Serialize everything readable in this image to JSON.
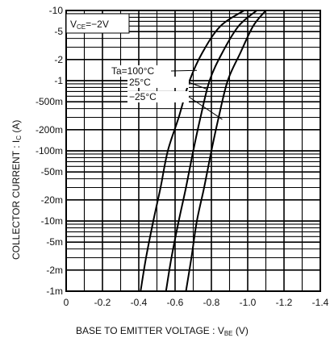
{
  "chart_data": {
    "type": "line",
    "condition": "VСЕ=−2V",
    "condition_parts": {
      "prefix": "V",
      "sub": "CE",
      "suffix": "=−2V"
    },
    "xlabel": {
      "main": "BASE  TO  EMITTER  VOLTAGE : V",
      "sub": "BE",
      "unit": " (V)"
    },
    "ylabel": {
      "main": "COLLECTOR  CURRENT : I",
      "sub": "C",
      "unit": " (A)"
    },
    "xlim": [
      0,
      -1.4
    ],
    "ylim": [
      -0.001,
      -10
    ],
    "y_scale": "log",
    "grid": true,
    "x_ticks": [
      {
        "value": 0,
        "label": "0"
      },
      {
        "value": -0.2,
        "label": "-0.2"
      },
      {
        "value": -0.4,
        "label": "-0.4"
      },
      {
        "value": -0.6,
        "label": "-0.6"
      },
      {
        "value": -0.8,
        "label": "-0.8"
      },
      {
        "value": -1.0,
        "label": "-1.0"
      },
      {
        "value": -1.2,
        "label": "-1.2"
      },
      {
        "value": -1.4,
        "label": "-1.4"
      }
    ],
    "y_ticks": [
      {
        "value": -10,
        "label": "-10"
      },
      {
        "value": -5,
        "label": "-5"
      },
      {
        "value": -2,
        "label": "-2"
      },
      {
        "value": -1,
        "label": "-1"
      },
      {
        "value": -0.5,
        "label": "-500m"
      },
      {
        "value": -0.2,
        "label": "-200m"
      },
      {
        "value": -0.1,
        "label": "-100m"
      },
      {
        "value": -0.05,
        "label": "-50m"
      },
      {
        "value": -0.02,
        "label": "-20m"
      },
      {
        "value": -0.01,
        "label": "-10m"
      },
      {
        "value": -0.005,
        "label": "-5m"
      },
      {
        "value": -0.002,
        "label": "-2m"
      },
      {
        "value": -0.001,
        "label": "-1m"
      }
    ],
    "series": [
      {
        "name": "Ta=100°C",
        "x": [
          -0.41,
          -0.44,
          -0.48,
          -0.52,
          -0.56,
          -0.62,
          -0.68,
          -0.75,
          -0.85,
          -0.98
        ],
        "y": [
          -0.001,
          -0.003,
          -0.01,
          -0.03,
          -0.1,
          -0.3,
          -1,
          -2.5,
          -6,
          -10
        ]
      },
      {
        "name": "25°C",
        "x": [
          -0.55,
          -0.58,
          -0.62,
          -0.66,
          -0.7,
          -0.74,
          -0.79,
          -0.86,
          -0.95,
          -1.05
        ],
        "y": [
          -0.001,
          -0.003,
          -0.01,
          -0.03,
          -0.1,
          -0.3,
          -1,
          -2.5,
          -6,
          -10
        ]
      },
      {
        "name": "−25°C",
        "x": [
          -0.66,
          -0.69,
          -0.72,
          -0.76,
          -0.8,
          -0.84,
          -0.89,
          -0.96,
          -1.03,
          -1.1
        ],
        "y": [
          -0.001,
          -0.003,
          -0.01,
          -0.03,
          -0.1,
          -0.3,
          -1,
          -2.5,
          -6,
          -10
        ]
      }
    ],
    "legend_labels": [
      "Ta=100°C",
      "25°C",
      "−25°C"
    ]
  }
}
